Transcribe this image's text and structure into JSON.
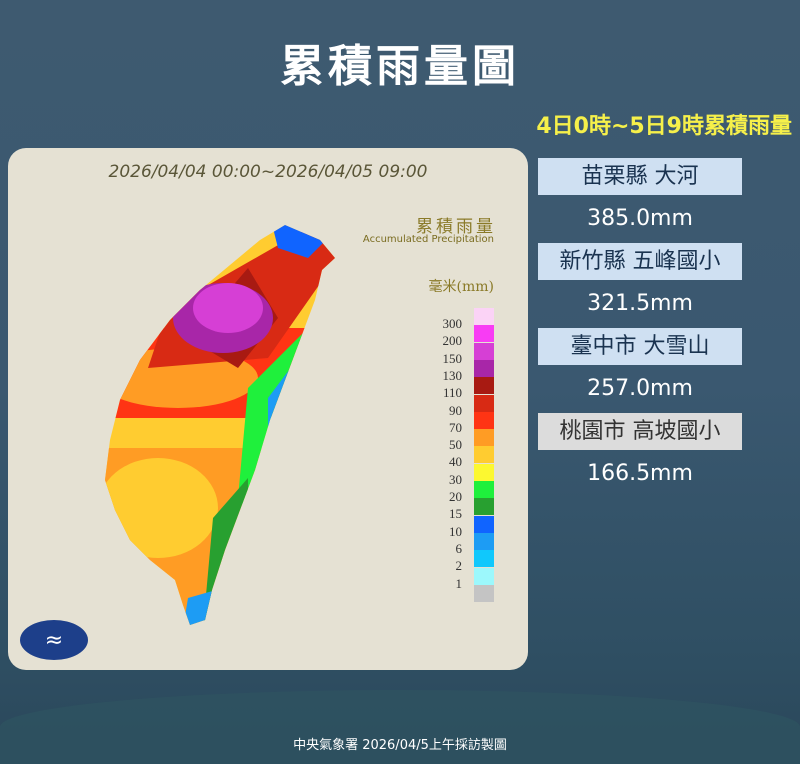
{
  "title": "累積雨量圖",
  "subtitle": "4日0時~5日9時累積雨量",
  "map": {
    "date_range": "2026/04/04 00:00~2026/04/05 09:00",
    "legend_title": "累積雨量",
    "legend_title_en": "Accumulated Precipitation",
    "legend_unit": "毫米(mm)",
    "legend_labels": [
      "300",
      "200",
      "150",
      "130",
      "110",
      "90",
      "70",
      "50",
      "40",
      "30",
      "20",
      "15",
      "10",
      "6",
      "2",
      "1"
    ],
    "legend_colors": [
      "#fbd3f6",
      "#f83cf4",
      "#d63fd5",
      "#a826a8",
      "#a81a12",
      "#d82a14",
      "#ff3414",
      "#ff9c24",
      "#ffcc30",
      "#fcf830",
      "#1ff03c",
      "#28a030",
      "#1064ff",
      "#1d9cf4",
      "#10c8fc",
      "#9cf8fc",
      "#c4c4c4"
    ]
  },
  "stations": [
    {
      "name": "苗栗縣 大河",
      "value": "385.0mm"
    },
    {
      "name": "新竹縣 五峰國小",
      "value": "321.5mm"
    },
    {
      "name": "臺中市 大雪山",
      "value": "257.0mm"
    },
    {
      "name": "桃園市 高坡國小",
      "value": "166.5mm"
    }
  ],
  "footer": "中央氣象署 2026/04/5上午採訪製圖"
}
